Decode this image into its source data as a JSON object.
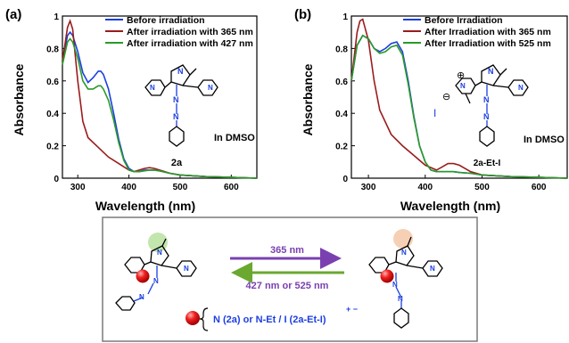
{
  "panel_labels": [
    "(a)",
    "(b)"
  ],
  "chart_data": [
    {
      "panel": "(a)",
      "type": "line",
      "xlabel": "Wavelength (nm)",
      "ylabel": "Absorbance",
      "xlim": [
        270,
        650
      ],
      "ylim": [
        0,
        1.0
      ],
      "xticks": [
        "300",
        "400",
        "500",
        "600"
      ],
      "yticks": [
        "0",
        "0.2",
        "0.4",
        "0.6",
        "0.8",
        "1"
      ],
      "legend_position": "top-right",
      "annotations": [
        "2a",
        "In DMSO"
      ],
      "series": [
        {
          "name": "Before irradiation",
          "color": "#1c3fe0",
          "x": [
            270,
            280,
            285,
            290,
            300,
            310,
            320,
            330,
            340,
            345,
            350,
            360,
            370,
            380,
            390,
            400,
            410,
            420,
            430,
            440,
            450,
            460,
            480,
            500,
            550,
            600,
            650
          ],
          "y": [
            0.72,
            0.88,
            0.9,
            0.88,
            0.78,
            0.65,
            0.59,
            0.62,
            0.66,
            0.66,
            0.64,
            0.55,
            0.4,
            0.24,
            0.12,
            0.06,
            0.04,
            0.04,
            0.05,
            0.05,
            0.05,
            0.045,
            0.03,
            0.02,
            0.01,
            0.005,
            0.0
          ]
        },
        {
          "name": "After irradiation with 365 nm",
          "color": "#9a1c1c",
          "x": [
            270,
            280,
            285,
            290,
            300,
            310,
            320,
            340,
            360,
            380,
            400,
            410,
            420,
            430,
            440,
            450,
            460,
            470,
            480,
            500,
            550,
            600,
            650
          ],
          "y": [
            0.72,
            0.93,
            0.97,
            0.92,
            0.6,
            0.35,
            0.25,
            0.19,
            0.13,
            0.09,
            0.05,
            0.04,
            0.05,
            0.06,
            0.065,
            0.06,
            0.05,
            0.04,
            0.03,
            0.02,
            0.01,
            0.005,
            0.0
          ]
        },
        {
          "name": "After irradiation with 427 nm",
          "color": "#2a9a2a",
          "x": [
            270,
            280,
            285,
            290,
            300,
            310,
            320,
            330,
            340,
            345,
            350,
            360,
            370,
            380,
            390,
            400,
            410,
            420,
            430,
            440,
            450,
            460,
            480,
            500,
            550,
            600,
            650
          ],
          "y": [
            0.7,
            0.84,
            0.86,
            0.84,
            0.74,
            0.6,
            0.55,
            0.55,
            0.57,
            0.57,
            0.55,
            0.48,
            0.36,
            0.22,
            0.11,
            0.05,
            0.04,
            0.04,
            0.045,
            0.05,
            0.05,
            0.045,
            0.03,
            0.02,
            0.01,
            0.005,
            0.0
          ]
        }
      ]
    },
    {
      "panel": "(b)",
      "type": "line",
      "xlabel": "Wavelength (nm)",
      "ylabel": "Absorbance",
      "xlim": [
        270,
        650
      ],
      "ylim": [
        0,
        1.0
      ],
      "xticks": [
        "300",
        "400",
        "500",
        "600"
      ],
      "yticks": [
        "0",
        "0.2",
        "0.4",
        "0.6",
        "0.8",
        "1"
      ],
      "legend_position": "top-right",
      "annotations": [
        "2a-Et-I",
        "In DMSO"
      ],
      "series": [
        {
          "name": "Before Irradiation",
          "color": "#1c3fe0",
          "x": [
            270,
            280,
            290,
            300,
            310,
            320,
            330,
            340,
            350,
            360,
            370,
            380,
            390,
            400,
            410,
            420,
            430,
            440,
            450,
            460,
            480,
            500,
            550,
            600,
            650
          ],
          "y": [
            0.6,
            0.82,
            0.88,
            0.86,
            0.8,
            0.78,
            0.8,
            0.83,
            0.84,
            0.78,
            0.6,
            0.38,
            0.2,
            0.1,
            0.05,
            0.04,
            0.04,
            0.04,
            0.04,
            0.035,
            0.03,
            0.02,
            0.01,
            0.005,
            0.0
          ]
        },
        {
          "name": "After Irradiation with 365 nm",
          "color": "#9a1c1c",
          "x": [
            270,
            280,
            285,
            290,
            300,
            310,
            320,
            340,
            360,
            380,
            400,
            420,
            430,
            440,
            450,
            460,
            470,
            480,
            500,
            550,
            600,
            650
          ],
          "y": [
            0.6,
            0.9,
            0.97,
            0.98,
            0.85,
            0.6,
            0.42,
            0.27,
            0.2,
            0.14,
            0.08,
            0.05,
            0.07,
            0.09,
            0.09,
            0.08,
            0.06,
            0.04,
            0.02,
            0.01,
            0.005,
            0.0
          ]
        },
        {
          "name": "After Irradiation with 525 nm",
          "color": "#2a9a2a",
          "x": [
            270,
            280,
            290,
            300,
            310,
            320,
            330,
            340,
            350,
            360,
            370,
            380,
            390,
            400,
            410,
            420,
            430,
            440,
            450,
            460,
            480,
            500,
            550,
            600,
            650
          ],
          "y": [
            0.6,
            0.82,
            0.88,
            0.86,
            0.8,
            0.77,
            0.78,
            0.81,
            0.82,
            0.76,
            0.58,
            0.37,
            0.2,
            0.1,
            0.05,
            0.04,
            0.04,
            0.04,
            0.04,
            0.035,
            0.03,
            0.02,
            0.01,
            0.005,
            0.0
          ]
        }
      ]
    }
  ],
  "scheme": {
    "arrow_forward_label": "365 nm",
    "arrow_back_label": "427 nm or 525 nm",
    "atom_n_labels": [
      "N",
      "N",
      "N",
      "N",
      "N"
    ],
    "key_text": "N (2a) or  N-Et / I  (2a-Et-I)",
    "key_charge": "+ −",
    "colors": {
      "arrow_forward": "#7a40b0",
      "arrow_back": "#6aa830",
      "nitrogen": "#1c3fe0",
      "red_sphere": "#e81818",
      "green_highlight": "#b8e0a0",
      "orange_highlight": "#f5c8a8",
      "box_border": "#7a7a7a",
      "key_text": "#1c3fe0"
    }
  },
  "structure_b_labels": {
    "plus": "⊕",
    "minus": "⊖",
    "iodide": "I"
  }
}
